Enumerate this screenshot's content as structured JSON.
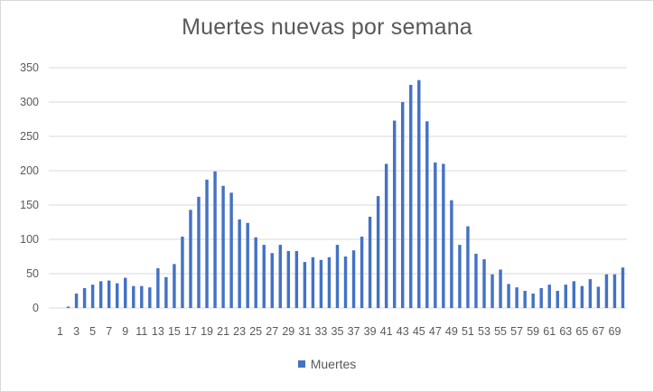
{
  "chart_data": {
    "type": "bar",
    "title": "Muertes nuevas por semana",
    "xlabel": "",
    "ylabel": "",
    "ylim": [
      0,
      350
    ],
    "yticks": [
      0,
      50,
      100,
      150,
      200,
      250,
      300,
      350
    ],
    "grid": true,
    "legend_position": "bottom",
    "x_tick_labels": [
      "1",
      "3",
      "5",
      "7",
      "9",
      "11",
      "13",
      "15",
      "17",
      "19",
      "21",
      "23",
      "25",
      "27",
      "29",
      "31",
      "33",
      "35",
      "37",
      "39",
      "41",
      "43",
      "45",
      "47",
      "49",
      "51",
      "53",
      "55",
      "57",
      "59",
      "61",
      "63",
      "65",
      "67",
      "69"
    ],
    "series": [
      {
        "name": "Muertes",
        "color": "#4472c4",
        "values": [
          0,
          2,
          21,
          29,
          34,
          39,
          40,
          36,
          44,
          32,
          32,
          30,
          58,
          45,
          64,
          104,
          143,
          162,
          187,
          199,
          178,
          168,
          129,
          124,
          103,
          92,
          80,
          92,
          83,
          83,
          67,
          74,
          70,
          74,
          92,
          75,
          84,
          104,
          133,
          163,
          210,
          273,
          300,
          325,
          332,
          272,
          212,
          210,
          157,
          92,
          119,
          79,
          71,
          49,
          56,
          35,
          30,
          25,
          21,
          29,
          34,
          25,
          34,
          39,
          32,
          42,
          31,
          49,
          49,
          59
        ]
      }
    ]
  }
}
